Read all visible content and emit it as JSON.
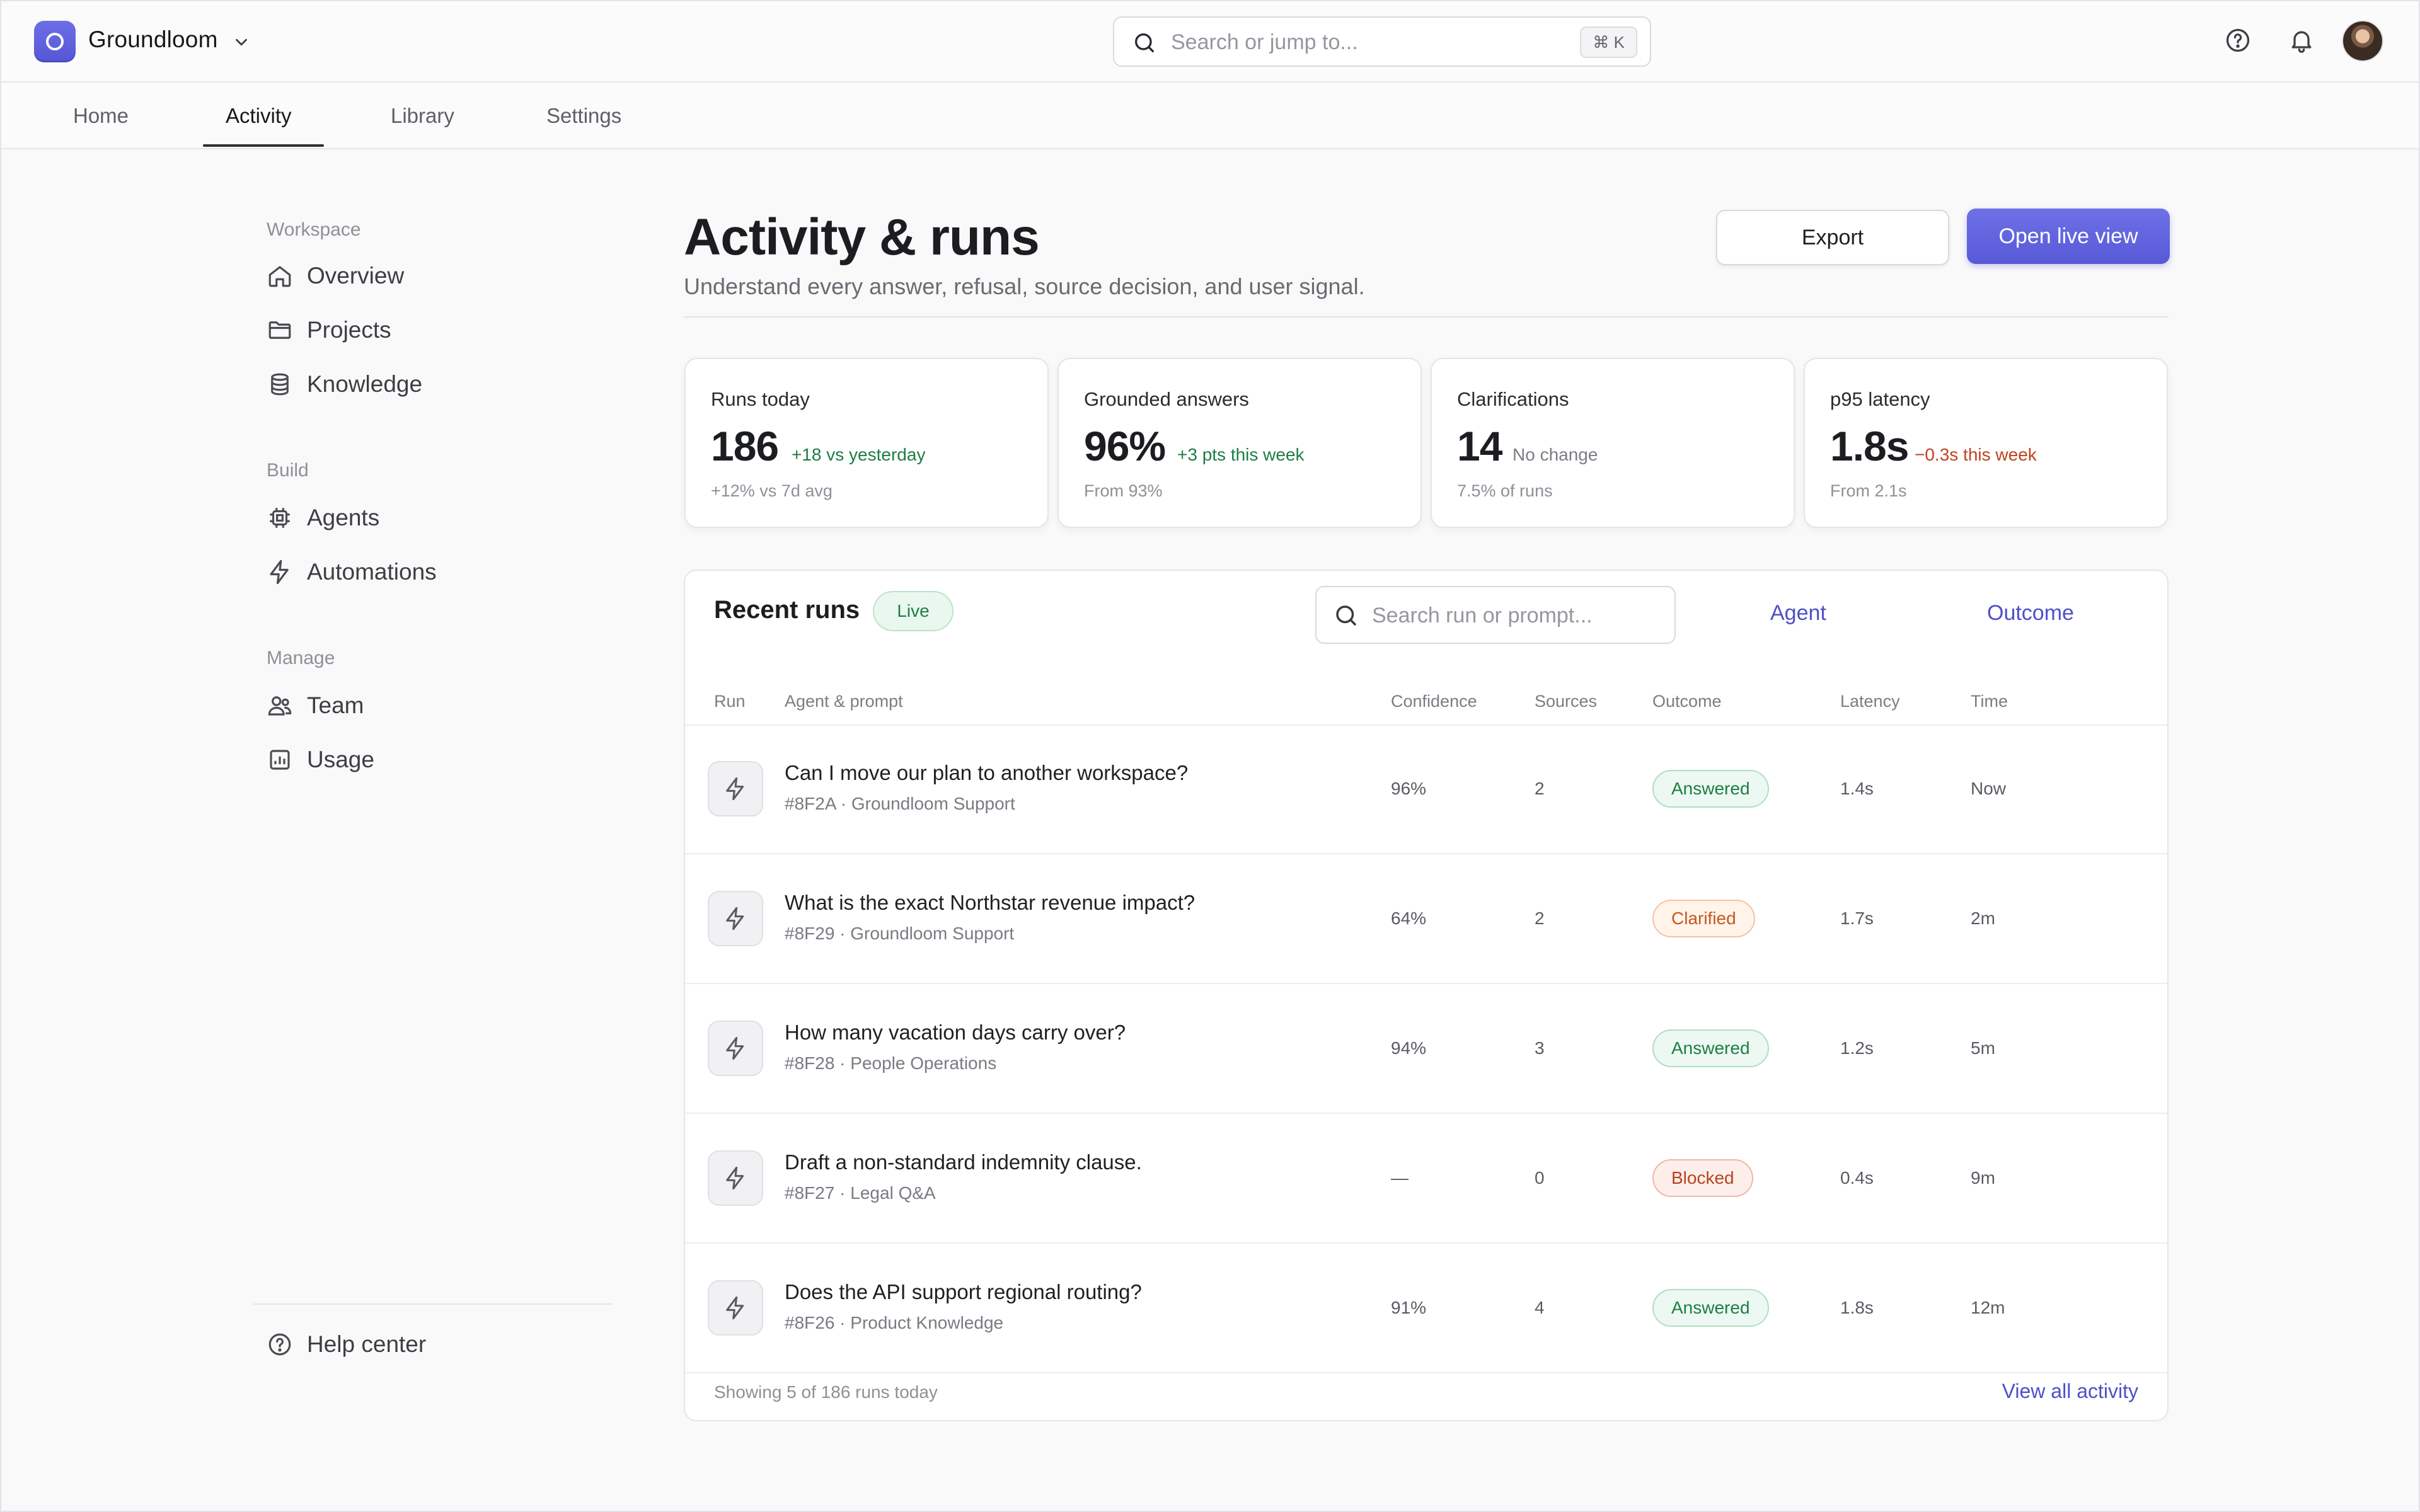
{
  "app": {
    "name": "Groundloom"
  },
  "search": {
    "placeholder": "Search or jump to...",
    "shortcut": "⌘ K"
  },
  "tabs": [
    {
      "label": "Home"
    },
    {
      "label": "Activity",
      "active": true
    },
    {
      "label": "Library"
    },
    {
      "label": "Settings"
    }
  ],
  "sidebar": {
    "groups": [
      {
        "title": "Workspace",
        "items": [
          {
            "label": "Overview",
            "icon": "home-icon"
          },
          {
            "label": "Projects",
            "icon": "folder-icon"
          },
          {
            "label": "Knowledge",
            "icon": "database-icon"
          }
        ]
      },
      {
        "title": "Build",
        "items": [
          {
            "label": "Agents",
            "icon": "chip-icon"
          },
          {
            "label": "Automations",
            "icon": "bolt-icon"
          }
        ]
      },
      {
        "title": "Manage",
        "items": [
          {
            "label": "Team",
            "icon": "users-icon"
          },
          {
            "label": "Usage",
            "icon": "chart-icon"
          }
        ]
      }
    ],
    "help": {
      "label": "Help center",
      "icon": "help-circle-icon"
    }
  },
  "page": {
    "title": "Activity & runs",
    "subtitle": "Understand every answer, refusal, source decision, and user signal.",
    "export_label": "Export",
    "live_label": "Open live view"
  },
  "stats": [
    {
      "label": "Runs today",
      "value": "186",
      "delta": "+18 vs yesterday",
      "delta_tone": "positive",
      "foot": "+12% vs 7d avg"
    },
    {
      "label": "Grounded answers",
      "value": "96%",
      "delta": "+3 pts this week",
      "delta_tone": "positive",
      "foot": "From 93%"
    },
    {
      "label": "Clarifications",
      "value": "14",
      "delta": "No change",
      "delta_tone": "neutral",
      "foot": "7.5% of runs"
    },
    {
      "label": "p95 latency",
      "value": "1.8s",
      "delta": "−0.3s this week",
      "delta_tone": "negative",
      "foot": "From 2.1s"
    }
  ],
  "runs": {
    "title": "Recent runs",
    "live_badge": "Live",
    "search_placeholder": "Search run or prompt...",
    "filters": [
      "Agent",
      "Outcome"
    ],
    "columns": [
      "Run",
      "Agent & prompt",
      "Confidence",
      "Sources",
      "Outcome",
      "Latency",
      "Time"
    ],
    "rows": [
      {
        "prompt": "Can I move our plan to another workspace?",
        "meta": "#8F2A · Groundloom Support",
        "confidence": "96%",
        "sources": "2",
        "outcome": "Answered",
        "latency": "1.4s",
        "time": "Now"
      },
      {
        "prompt": "What is the exact Northstar revenue impact?",
        "meta": "#8F29 · Groundloom Support",
        "confidence": "64%",
        "sources": "2",
        "outcome": "Clarified",
        "latency": "1.7s",
        "time": "2m"
      },
      {
        "prompt": "How many vacation days carry over?",
        "meta": "#8F28 · People Operations",
        "confidence": "94%",
        "sources": "3",
        "outcome": "Answered",
        "latency": "1.2s",
        "time": "5m"
      },
      {
        "prompt": "Draft a non-standard indemnity clause.",
        "meta": "#8F27 · Legal Q&A",
        "confidence": "—",
        "sources": "0",
        "outcome": "Blocked",
        "latency": "0.4s",
        "time": "9m"
      },
      {
        "prompt": "Does the API support regional routing?",
        "meta": "#8F26 · Product Knowledge",
        "confidence": "91%",
        "sources": "4",
        "outcome": "Answered",
        "latency": "1.8s",
        "time": "12m"
      }
    ],
    "footer_text": "Showing 5 of 186 runs today",
    "footer_link": "View all activity"
  },
  "colors": {
    "accent": "#5759d8",
    "positive": "#1e7d45",
    "negative": "#c2411f"
  }
}
